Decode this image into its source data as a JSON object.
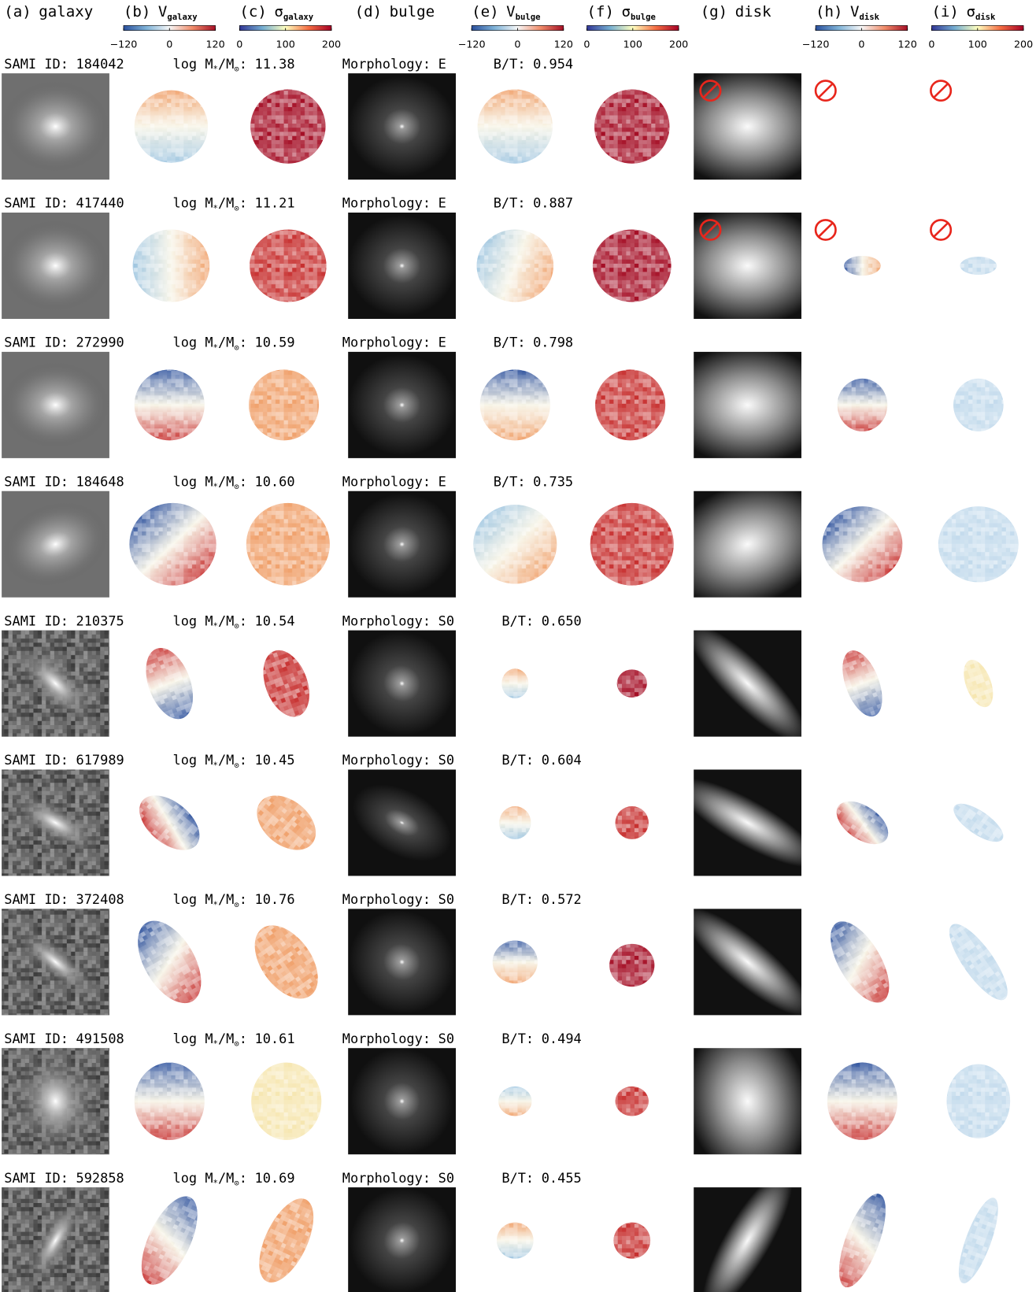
{
  "columns": [
    {
      "letter": "(a)",
      "title": "galaxy"
    },
    {
      "letter": "(b)",
      "symbol": "V",
      "subscript": "galaxy",
      "colorbar": "velocity"
    },
    {
      "letter": "(c)",
      "symbol": "σ",
      "subscript": "galaxy",
      "colorbar": "dispersion"
    },
    {
      "letter": "(d)",
      "title": "bulge"
    },
    {
      "letter": "(e)",
      "symbol": "V",
      "subscript": "bulge",
      "colorbar": "velocity"
    },
    {
      "letter": "(f)",
      "symbol": "σ",
      "subscript": "bulge",
      "colorbar": "dispersion"
    },
    {
      "letter": "(g)",
      "title": "disk"
    },
    {
      "letter": "(h)",
      "symbol": "V",
      "subscript": "disk",
      "colorbar": "velocity"
    },
    {
      "letter": "(i)",
      "symbol": "σ",
      "subscript": "disk",
      "colorbar": "dispersion"
    }
  ],
  "colorbars": {
    "velocity": {
      "range": [
        -120,
        120
      ],
      "ticks": [
        {
          "value": -120,
          "label": "−120"
        },
        0,
        120
      ]
    },
    "dispersion": {
      "range": [
        0,
        200
      ],
      "ticks": [
        0,
        100,
        200
      ]
    }
  },
  "labels": {
    "sami_id": "SAMI ID:",
    "log": "log M",
    "star": "*",
    "per": "/M",
    "sun": "⊙",
    "colon": ":",
    "morphology": "Morphology:",
    "bt": "B/T:"
  },
  "rows": [
    {
      "sami_id": "184042",
      "log_mass": "11.38",
      "morphology": "E",
      "bt": "0.954",
      "disk": "none"
    },
    {
      "sami_id": "417440",
      "log_mass": "11.21",
      "morphology": "E",
      "bt": "0.887",
      "disk": "partial"
    },
    {
      "sami_id": "272990",
      "log_mass": "10.59",
      "morphology": "E",
      "bt": "0.798",
      "disk": "full"
    },
    {
      "sami_id": "184648",
      "log_mass": "10.60",
      "morphology": "E",
      "bt": "0.735",
      "disk": "full"
    },
    {
      "sami_id": "210375",
      "log_mass": "10.54",
      "morphology": "S0",
      "bt": "0.650",
      "disk": "full"
    },
    {
      "sami_id": "617989",
      "log_mass": "10.45",
      "morphology": "S0",
      "bt": "0.604",
      "disk": "full"
    },
    {
      "sami_id": "372408",
      "log_mass": "10.76",
      "morphology": "S0",
      "bt": "0.572",
      "disk": "full"
    },
    {
      "sami_id": "491508",
      "log_mass": "10.61",
      "morphology": "S0",
      "bt": "0.494",
      "disk": "full"
    },
    {
      "sami_id": "592858",
      "log_mass": "10.69",
      "morphology": "S0",
      "bt": "0.455",
      "disk": "full"
    }
  ]
}
